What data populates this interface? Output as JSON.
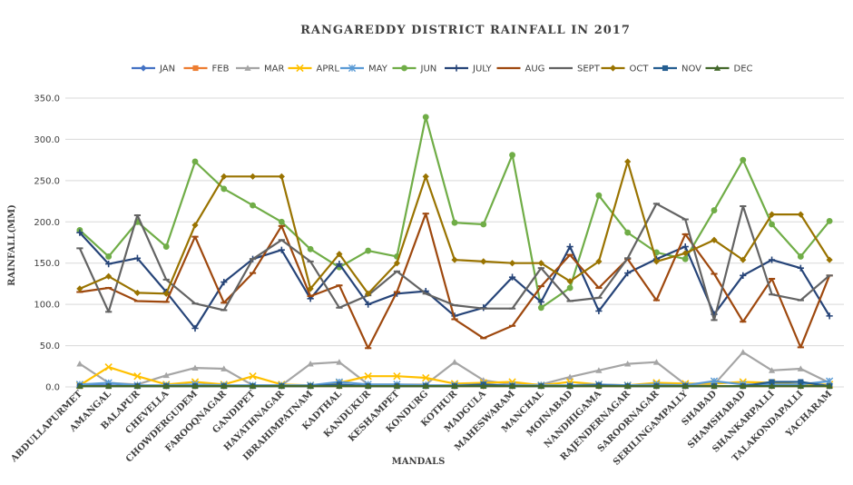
{
  "chart_data": {
    "type": "line",
    "title": "RANGAREDDY DISTRICT RAINFALL IN 2017",
    "xlabel": "MANDALS",
    "ylabel": "RAINFALL(MM)",
    "ylim": [
      0,
      350
    ],
    "ytick_step": 50,
    "yticks": [
      "0.0",
      "50.0",
      "100.0",
      "150.0",
      "200.0",
      "250.0",
      "300.0",
      "350.0"
    ],
    "grid": true,
    "legend_position": "top",
    "categories": [
      "ABDULLAPURMET",
      "AMANGAL",
      "BALAPUR",
      "CHEVELLA",
      "CHOWDERGUDEM",
      "FAROOQNAGAR",
      "GANDIPET",
      "HAYATHNAGAR",
      "IBRAHIMPATNAM",
      "KADTHAL",
      "KANDUKUR",
      "KESHAMPET",
      "KONDURG",
      "KOTHUR",
      "MADGULA",
      "MAHESWARAM",
      "MANCHAL",
      "MOINABAD",
      "NANDHIGAMA",
      "RAJENDERNAGAR",
      "SAROORNAGAR",
      "SERILINGAMPALLY",
      "SHABAD",
      "SHAMSHABAD",
      "SHANKARPALLI",
      "TALAKONDAPALLI",
      "YACHARAM"
    ],
    "series": [
      {
        "name": "JAN",
        "color": "#4472c4",
        "marker": "diamond",
        "values": [
          2,
          2,
          1,
          1,
          1,
          1,
          1,
          1,
          1,
          1,
          1,
          1,
          1,
          1,
          1,
          1,
          1,
          1,
          1,
          1,
          1,
          1,
          1,
          1,
          1,
          1,
          1
        ]
      },
      {
        "name": "FEB",
        "color": "#ed7d31",
        "marker": "square",
        "values": [
          1,
          1,
          1,
          1,
          1,
          1,
          1,
          1,
          1,
          1,
          1,
          1,
          1,
          1,
          1,
          1,
          1,
          1,
          1,
          1,
          1,
          1,
          1,
          1,
          1,
          1,
          1
        ]
      },
      {
        "name": "MAR",
        "color": "#a5a5a5",
        "marker": "triangle",
        "values": [
          28,
          5,
          3,
          14,
          23,
          22,
          2,
          2,
          28,
          30,
          3,
          3,
          3,
          30,
          8,
          3,
          3,
          12,
          20,
          28,
          30,
          3,
          3,
          42,
          20,
          22,
          5
        ]
      },
      {
        "name": "APRL",
        "color": "#ffc000",
        "marker": "x",
        "values": [
          2,
          24,
          13,
          3,
          6,
          3,
          13,
          3,
          2,
          5,
          13,
          13,
          11,
          4,
          5,
          6,
          2,
          6,
          3,
          2,
          5,
          4,
          4,
          6,
          5,
          3,
          3
        ]
      },
      {
        "name": "MAY",
        "color": "#5b9bd5",
        "marker": "star",
        "values": [
          3,
          5,
          2,
          2,
          3,
          2,
          2,
          2,
          2,
          6,
          3,
          3,
          2,
          2,
          3,
          2,
          2,
          2,
          3,
          2,
          3,
          2,
          7,
          3,
          3,
          3,
          7
        ]
      },
      {
        "name": "JUN",
        "color": "#70ad47",
        "marker": "circle",
        "values": [
          190,
          158,
          200,
          170,
          273,
          240,
          220,
          200,
          167,
          145,
          165,
          158,
          327,
          199,
          197,
          281,
          96,
          120,
          232,
          187,
          163,
          155,
          214,
          275,
          197,
          158,
          201
        ]
      },
      {
        "name": "JULY",
        "color": "#264478",
        "marker": "plus",
        "values": [
          187,
          149,
          156,
          115,
          71,
          127,
          155,
          166,
          107,
          149,
          100,
          113,
          116,
          86,
          96,
          133,
          103,
          170,
          92,
          138,
          155,
          170,
          88,
          135,
          154,
          144,
          86
        ]
      },
      {
        "name": "AUG",
        "color": "#9e480e",
        "marker": "dash",
        "values": [
          115,
          120,
          104,
          103,
          182,
          102,
          138,
          195,
          110,
          123,
          47,
          115,
          210,
          82,
          59,
          74,
          122,
          160,
          120,
          155,
          105,
          185,
          137,
          79,
          131,
          48,
          135
        ]
      },
      {
        "name": "SEPT",
        "color": "#636363",
        "marker": "dash",
        "values": [
          168,
          91,
          208,
          130,
          101,
          93,
          155,
          178,
          152,
          96,
          111,
          140,
          113,
          99,
          95,
          95,
          144,
          104,
          108,
          156,
          222,
          203,
          81,
          219,
          112,
          105,
          135
        ]
      },
      {
        "name": "OCT",
        "color": "#997300",
        "marker": "diamond",
        "values": [
          119,
          134,
          114,
          113,
          196,
          255,
          255,
          255,
          119,
          161,
          113,
          150,
          255,
          154,
          152,
          150,
          150,
          128,
          152,
          273,
          152,
          162,
          178,
          154,
          209,
          209,
          154
        ]
      },
      {
        "name": "NOV",
        "color": "#255e91",
        "marker": "square",
        "values": [
          1,
          1,
          1,
          1,
          1,
          1,
          1,
          1,
          1,
          3,
          1,
          1,
          1,
          1,
          3,
          1,
          1,
          1,
          2,
          1,
          1,
          1,
          1,
          1,
          6,
          6,
          1
        ]
      },
      {
        "name": "DEC",
        "color": "#43682b",
        "marker": "triangle",
        "values": [
          1,
          1,
          1,
          1,
          1,
          1,
          1,
          1,
          1,
          1,
          1,
          1,
          1,
          1,
          1,
          1,
          1,
          1,
          1,
          1,
          1,
          1,
          1,
          1,
          1,
          1,
          1
        ]
      }
    ]
  }
}
